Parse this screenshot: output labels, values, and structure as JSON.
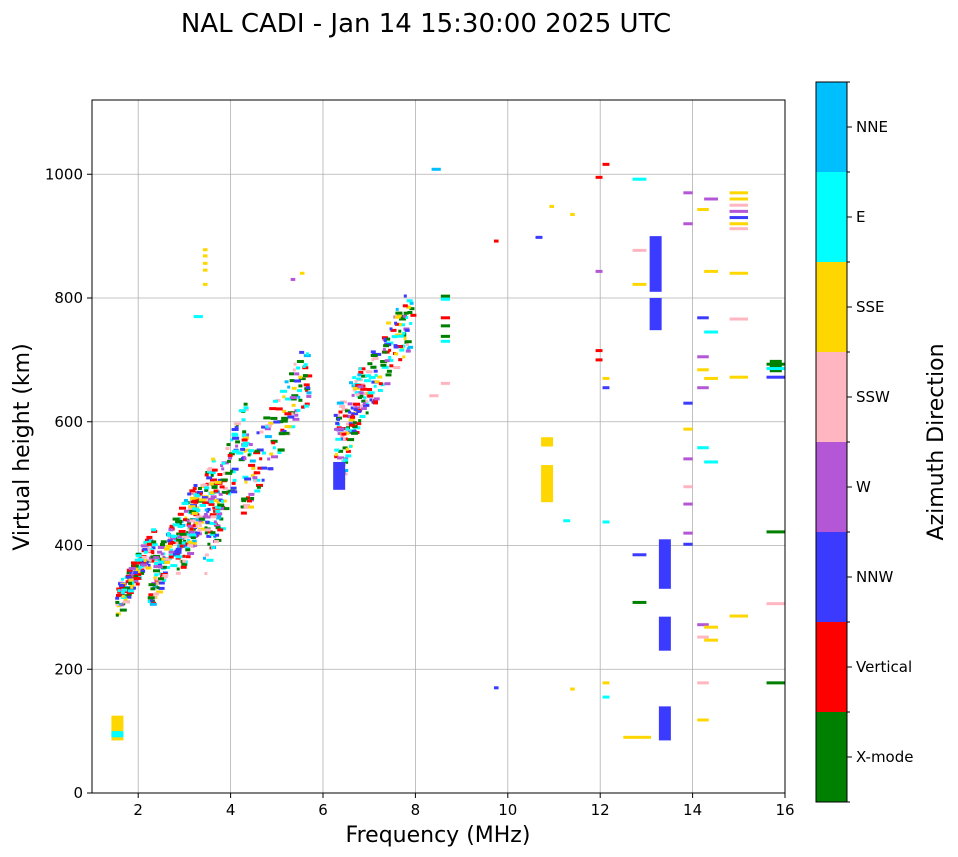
{
  "chart_data": {
    "type": "scatter",
    "title": "NAL CADI - Jan 14 15:30:00 2025 UTC",
    "xlabel": "Frequency (MHz)",
    "ylabel": "Virtual height (km)",
    "xlim": [
      1,
      16
    ],
    "ylim": [
      0,
      1120
    ],
    "xticks": [
      2,
      4,
      6,
      8,
      10,
      12,
      14,
      16
    ],
    "yticks": [
      0,
      200,
      400,
      600,
      800,
      1000
    ],
    "grid": true,
    "colorbar": {
      "label": "Azimuth Direction",
      "categories": [
        {
          "name": "X-mode",
          "color": "#008000"
        },
        {
          "name": "Vertical",
          "color": "#ff0000"
        },
        {
          "name": "NNW",
          "color": "#3b3bff"
        },
        {
          "name": "W",
          "color": "#b357d6"
        },
        {
          "name": "SSW",
          "color": "#ffb6c1"
        },
        {
          "name": "SSE",
          "color": "#ffd700"
        },
        {
          "name": "E",
          "color": "#00ffff"
        },
        {
          "name": "NNE",
          "color": "#00bfff"
        }
      ]
    },
    "segments": [
      {
        "f": 1.55,
        "h0": 85,
        "h1": 125,
        "dir": "SSE"
      },
      {
        "f": 1.55,
        "h0": 90,
        "h1": 100,
        "dir": "E"
      },
      {
        "f": 13.4,
        "h0": 85,
        "h1": 140,
        "dir": "NNW"
      },
      {
        "f": 13.4,
        "h0": 230,
        "h1": 285,
        "dir": "NNW"
      },
      {
        "f": 13.4,
        "h0": 330,
        "h1": 410,
        "dir": "NNW"
      },
      {
        "f": 13.2,
        "h0": 748,
        "h1": 800,
        "dir": "NNW"
      },
      {
        "f": 13.2,
        "h0": 810,
        "h1": 900,
        "dir": "NNW"
      },
      {
        "f": 10.85,
        "h0": 470,
        "h1": 530,
        "dir": "SSE"
      },
      {
        "f": 10.85,
        "h0": 560,
        "h1": 575,
        "dir": "SSE"
      },
      {
        "f": 6.35,
        "h0": 490,
        "h1": 535,
        "dir": "NNW"
      },
      {
        "f": 15.8,
        "h0": 680,
        "h1": 700,
        "dir": "X-mode"
      }
    ],
    "blobs": [
      {
        "f0": 1.5,
        "f1": 2.3,
        "h0": 300,
        "h1": 440,
        "n": 150
      },
      {
        "f0": 2.2,
        "f1": 3.2,
        "h0": 320,
        "h1": 520,
        "n": 160
      },
      {
        "f0": 2.8,
        "f1": 3.6,
        "h0": 360,
        "h1": 560,
        "n": 130
      },
      {
        "f0": 3.4,
        "f1": 4.3,
        "h0": 380,
        "h1": 670,
        "n": 130
      },
      {
        "f0": 4.2,
        "f1": 5.7,
        "h0": 470,
        "h1": 760,
        "n": 130
      },
      {
        "f0": 6.2,
        "f1": 7.9,
        "h0": 560,
        "h1": 840,
        "n": 190
      },
      {
        "f0": 6.3,
        "f1": 6.8,
        "h0": 500,
        "h1": 720,
        "n": 50
      }
    ],
    "marks": [
      {
        "f0": 8.35,
        "f1": 8.55,
        "h": 1008,
        "dir": "NNE"
      },
      {
        "f0": 9.7,
        "f1": 9.8,
        "h": 892,
        "dir": "Vertical"
      },
      {
        "f0": 9.7,
        "f1": 9.8,
        "h": 170,
        "dir": "NNW"
      },
      {
        "f0": 10.6,
        "f1": 10.75,
        "h": 898,
        "dir": "NNW"
      },
      {
        "f0": 10.9,
        "f1": 11.0,
        "h": 948,
        "dir": "SSE"
      },
      {
        "f0": 11.35,
        "f1": 11.45,
        "h": 935,
        "dir": "SSE"
      },
      {
        "f0": 11.35,
        "f1": 11.45,
        "h": 168,
        "dir": "SSE"
      },
      {
        "f0": 11.2,
        "f1": 11.35,
        "h": 440,
        "dir": "E"
      },
      {
        "f0": 12.05,
        "f1": 12.2,
        "h": 1016,
        "dir": "Vertical"
      },
      {
        "f0": 11.9,
        "f1": 12.05,
        "h": 995,
        "dir": "Vertical"
      },
      {
        "f0": 11.9,
        "f1": 12.05,
        "h": 843,
        "dir": "W"
      },
      {
        "f0": 11.9,
        "f1": 12.05,
        "h": 715,
        "dir": "Vertical"
      },
      {
        "f0": 11.9,
        "f1": 12.05,
        "h": 700,
        "dir": "Vertical"
      },
      {
        "f0": 12.05,
        "f1": 12.2,
        "h": 670,
        "dir": "SSE"
      },
      {
        "f0": 12.05,
        "f1": 12.2,
        "h": 655,
        "dir": "NNW"
      },
      {
        "f0": 12.05,
        "f1": 12.2,
        "h": 438,
        "dir": "E"
      },
      {
        "f0": 12.05,
        "f1": 12.2,
        "h": 178,
        "dir": "SSE"
      },
      {
        "f0": 12.05,
        "f1": 12.2,
        "h": 155,
        "dir": "E"
      },
      {
        "f0": 12.5,
        "f1": 13.1,
        "h": 90,
        "dir": "SSE"
      },
      {
        "f0": 12.7,
        "f1": 13.0,
        "h": 308,
        "dir": "X-mode"
      },
      {
        "f0": 12.7,
        "f1": 13.0,
        "h": 385,
        "dir": "NNW"
      },
      {
        "f0": 12.7,
        "f1": 13.0,
        "h": 822,
        "dir": "SSE"
      },
      {
        "f0": 12.7,
        "f1": 13.0,
        "h": 877,
        "dir": "SSW"
      },
      {
        "f0": 12.7,
        "f1": 13.0,
        "h": 992,
        "dir": "E"
      },
      {
        "f0": 13.8,
        "f1": 14.0,
        "h": 970,
        "dir": "W"
      },
      {
        "f0": 13.8,
        "f1": 14.0,
        "h": 920,
        "dir": "W"
      },
      {
        "f0": 13.8,
        "f1": 14.0,
        "h": 630,
        "dir": "NNW"
      },
      {
        "f0": 13.8,
        "f1": 14.0,
        "h": 588,
        "dir": "SSE"
      },
      {
        "f0": 13.8,
        "f1": 14.0,
        "h": 540,
        "dir": "W"
      },
      {
        "f0": 13.8,
        "f1": 14.0,
        "h": 495,
        "dir": "SSW"
      },
      {
        "f0": 13.8,
        "f1": 14.0,
        "h": 467,
        "dir": "W"
      },
      {
        "f0": 13.8,
        "f1": 14.0,
        "h": 420,
        "dir": "W"
      },
      {
        "f0": 13.8,
        "f1": 14.0,
        "h": 402,
        "dir": "NNW"
      },
      {
        "f0": 14.1,
        "f1": 14.35,
        "h": 943,
        "dir": "SSE"
      },
      {
        "f0": 14.1,
        "f1": 14.35,
        "h": 768,
        "dir": "NNW"
      },
      {
        "f0": 14.1,
        "f1": 14.35,
        "h": 705,
        "dir": "W"
      },
      {
        "f0": 14.1,
        "f1": 14.35,
        "h": 684,
        "dir": "SSE"
      },
      {
        "f0": 14.1,
        "f1": 14.35,
        "h": 655,
        "dir": "W"
      },
      {
        "f0": 14.1,
        "f1": 14.35,
        "h": 558,
        "dir": "E"
      },
      {
        "f0": 14.1,
        "f1": 14.35,
        "h": 272,
        "dir": "W"
      },
      {
        "f0": 14.1,
        "f1": 14.35,
        "h": 252,
        "dir": "SSW"
      },
      {
        "f0": 14.1,
        "f1": 14.35,
        "h": 178,
        "dir": "SSW"
      },
      {
        "f0": 14.1,
        "f1": 14.35,
        "h": 118,
        "dir": "SSE"
      },
      {
        "f0": 14.25,
        "f1": 14.55,
        "h": 960,
        "dir": "W"
      },
      {
        "f0": 14.25,
        "f1": 14.55,
        "h": 843,
        "dir": "SSE"
      },
      {
        "f0": 14.25,
        "f1": 14.55,
        "h": 745,
        "dir": "E"
      },
      {
        "f0": 14.25,
        "f1": 14.55,
        "h": 670,
        "dir": "SSE"
      },
      {
        "f0": 14.25,
        "f1": 14.55,
        "h": 535,
        "dir": "E"
      },
      {
        "f0": 14.25,
        "f1": 14.55,
        "h": 268,
        "dir": "SSE"
      },
      {
        "f0": 14.25,
        "f1": 14.55,
        "h": 247,
        "dir": "SSE"
      },
      {
        "f0": 14.8,
        "f1": 15.2,
        "h": 970,
        "dir": "SSE"
      },
      {
        "f0": 14.8,
        "f1": 15.2,
        "h": 960,
        "dir": "SSE"
      },
      {
        "f0": 14.8,
        "f1": 15.2,
        "h": 950,
        "dir": "SSW"
      },
      {
        "f0": 14.8,
        "f1": 15.2,
        "h": 940,
        "dir": "W"
      },
      {
        "f0": 14.8,
        "f1": 15.2,
        "h": 930,
        "dir": "NNW"
      },
      {
        "f0": 14.8,
        "f1": 15.2,
        "h": 920,
        "dir": "SSE"
      },
      {
        "f0": 14.8,
        "f1": 15.2,
        "h": 912,
        "dir": "SSW"
      },
      {
        "f0": 14.8,
        "f1": 15.2,
        "h": 840,
        "dir": "SSE"
      },
      {
        "f0": 14.8,
        "f1": 15.2,
        "h": 766,
        "dir": "SSW"
      },
      {
        "f0": 14.8,
        "f1": 15.2,
        "h": 672,
        "dir": "SSE"
      },
      {
        "f0": 14.8,
        "f1": 15.2,
        "h": 286,
        "dir": "SSE"
      },
      {
        "f0": 15.6,
        "f1": 16.0,
        "h": 693,
        "dir": "X-mode"
      },
      {
        "f0": 15.6,
        "f1": 16.0,
        "h": 686,
        "dir": "E"
      },
      {
        "f0": 15.6,
        "f1": 16.0,
        "h": 672,
        "dir": "NNW"
      },
      {
        "f0": 15.6,
        "f1": 16.0,
        "h": 422,
        "dir": "X-mode"
      },
      {
        "f0": 15.6,
        "f1": 16.0,
        "h": 306,
        "dir": "SSW"
      },
      {
        "f0": 15.6,
        "f1": 16.0,
        "h": 178,
        "dir": "X-mode"
      },
      {
        "f0": 8.55,
        "f1": 8.75,
        "h": 803,
        "dir": "X-mode"
      },
      {
        "f0": 8.55,
        "f1": 8.75,
        "h": 798,
        "dir": "E"
      },
      {
        "f0": 8.55,
        "f1": 8.75,
        "h": 768,
        "dir": "Vertical"
      },
      {
        "f0": 8.55,
        "f1": 8.75,
        "h": 755,
        "dir": "X-mode"
      },
      {
        "f0": 8.55,
        "f1": 8.75,
        "h": 738,
        "dir": "X-mode"
      },
      {
        "f0": 8.55,
        "f1": 8.75,
        "h": 730,
        "dir": "E"
      },
      {
        "f0": 8.55,
        "f1": 8.75,
        "h": 662,
        "dir": "SSW"
      },
      {
        "f0": 8.3,
        "f1": 8.5,
        "h": 642,
        "dir": "SSW"
      },
      {
        "f0": 3.2,
        "f1": 3.4,
        "h": 770,
        "dir": "E"
      },
      {
        "f0": 3.4,
        "f1": 3.5,
        "h": 878,
        "dir": "SSE"
      },
      {
        "f0": 3.4,
        "f1": 3.5,
        "h": 868,
        "dir": "SSE"
      },
      {
        "f0": 3.4,
        "f1": 3.5,
        "h": 856,
        "dir": "SSE"
      },
      {
        "f0": 3.4,
        "f1": 3.5,
        "h": 845,
        "dir": "SSE"
      },
      {
        "f0": 3.4,
        "f1": 3.5,
        "h": 822,
        "dir": "SSE"
      },
      {
        "f0": 5.3,
        "f1": 5.4,
        "h": 830,
        "dir": "W"
      },
      {
        "f0": 5.5,
        "f1": 5.6,
        "h": 840,
        "dir": "SSE"
      }
    ]
  }
}
